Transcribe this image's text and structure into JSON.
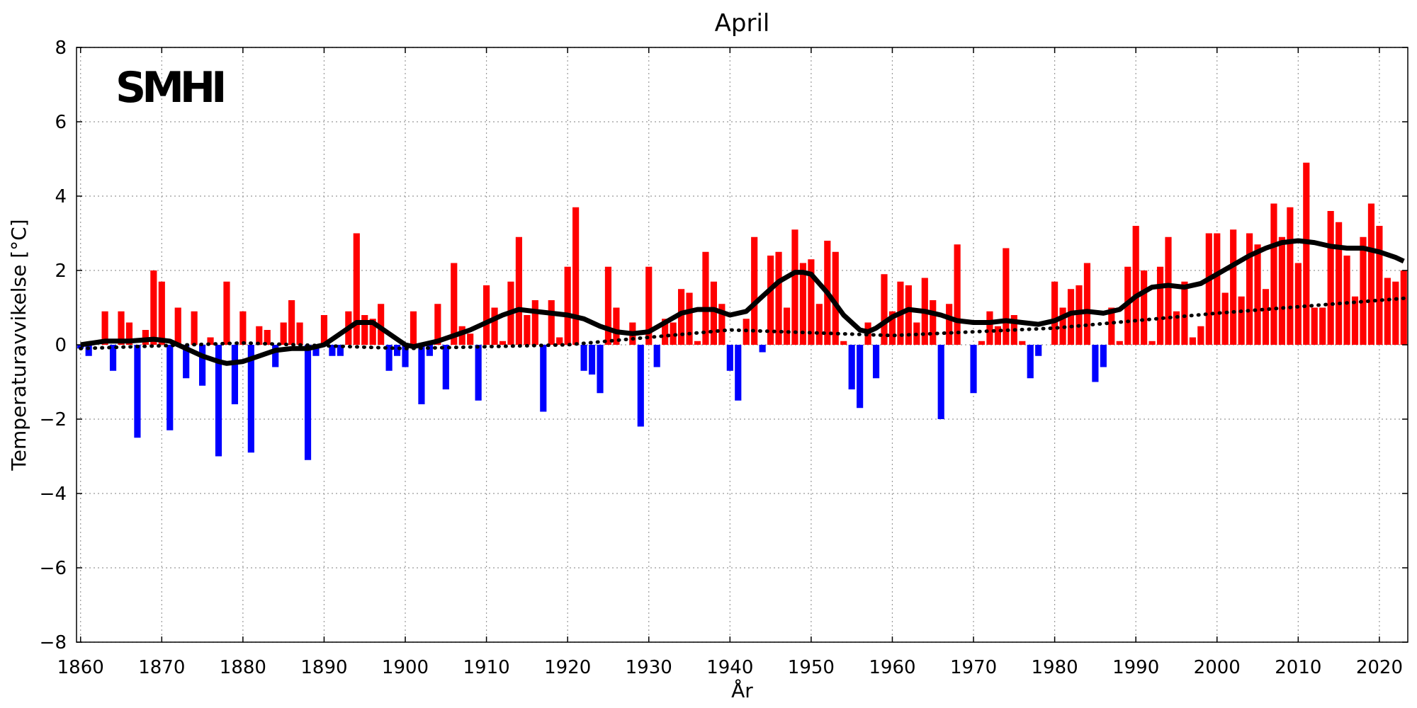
{
  "chart_data": {
    "type": "bar",
    "title": "April",
    "xlabel": "År",
    "ylabel": "Temperaturavvikelse [°C]",
    "logo": "SMHI",
    "xlim": [
      1859.5,
      2023.5
    ],
    "ylim": [
      -8,
      8
    ],
    "xticks": [
      1860,
      1870,
      1880,
      1890,
      1900,
      1910,
      1920,
      1930,
      1940,
      1950,
      1960,
      1970,
      1980,
      1990,
      2000,
      2010,
      2020
    ],
    "yticks": [
      -8,
      -6,
      -4,
      -2,
      0,
      2,
      4,
      6,
      8
    ],
    "ytick_labels": [
      "−8",
      "−6",
      "−4",
      "−2",
      "0",
      "2",
      "4",
      "6",
      "8"
    ],
    "grid": true,
    "colors": {
      "positive": "#ff0000",
      "negative": "#0000ff",
      "smooth": "#000000",
      "trend": "#000000"
    },
    "years_start": 1860,
    "values": [
      -0.1,
      -0.3,
      0.0,
      0.9,
      -0.7,
      0.9,
      0.6,
      -2.5,
      0.4,
      2.0,
      1.7,
      -2.3,
      1.0,
      -0.9,
      0.9,
      -1.1,
      0.2,
      -3.0,
      1.7,
      -1.6,
      0.9,
      -2.9,
      0.5,
      0.4,
      -0.6,
      0.6,
      1.2,
      0.6,
      -3.1,
      -0.3,
      0.8,
      -0.3,
      -0.3,
      0.9,
      3.0,
      0.8,
      0.7,
      1.1,
      -0.7,
      -0.3,
      -0.6,
      0.9,
      -1.6,
      -0.3,
      1.1,
      -1.2,
      2.2,
      0.5,
      0.3,
      -1.5,
      1.6,
      1.0,
      0.1,
      1.7,
      2.9,
      0.8,
      1.2,
      -1.8,
      1.2,
      0.2,
      2.1,
      3.7,
      -0.7,
      -0.8,
      -1.3,
      2.1,
      1.0,
      0.0,
      0.6,
      -2.2,
      2.1,
      -0.6,
      0.7,
      0.6,
      1.5,
      1.4,
      0.1,
      2.5,
      1.7,
      1.1,
      -0.7,
      -1.5,
      0.7,
      2.9,
      -0.2,
      2.4,
      2.5,
      1.0,
      3.1,
      2.2,
      2.3,
      1.1,
      2.8,
      2.5,
      0.1,
      -1.2,
      -1.7,
      0.6,
      -0.9,
      1.9,
      0.9,
      1.7,
      1.6,
      0.6,
      1.8,
      1.2,
      -2.0,
      1.1,
      2.7,
      0.0,
      -1.3,
      0.1,
      0.9,
      0.5,
      2.6,
      0.8,
      0.1,
      -0.9,
      -0.3,
      0.0,
      1.7,
      1.0,
      1.5,
      1.6,
      2.2,
      -1.0,
      -0.6,
      1.0,
      0.1,
      2.1,
      3.2,
      2.0,
      0.1,
      2.1,
      2.9,
      0.9,
      1.7,
      0.2,
      0.5,
      3.0,
      3.0,
      1.4,
      3.1,
      1.3,
      3.0,
      2.7,
      1.5,
      3.8,
      2.9,
      3.7,
      2.2,
      4.9,
      1.0,
      1.0,
      3.6,
      3.3,
      2.4,
      1.3,
      2.9,
      3.8,
      3.2,
      1.8,
      1.7,
      2.0
    ],
    "smooth": {
      "name": "",
      "x": [
        1860,
        1863,
        1866,
        1869,
        1871,
        1873,
        1875,
        1877,
        1878,
        1880,
        1882,
        1884,
        1886,
        1888,
        1890,
        1892,
        1894,
        1896,
        1898,
        1900,
        1901,
        1902,
        1904,
        1906,
        1908,
        1910,
        1912,
        1914,
        1916,
        1918,
        1920,
        1922,
        1924,
        1926,
        1928,
        1930,
        1932,
        1934,
        1936,
        1938,
        1940,
        1942,
        1944,
        1946,
        1948,
        1949,
        1950,
        1952,
        1954,
        1956,
        1957,
        1958,
        1960,
        1962,
        1964,
        1966,
        1968,
        1970,
        1972,
        1974,
        1976,
        1978,
        1980,
        1982,
        1984,
        1986,
        1988,
        1990,
        1992,
        1994,
        1996,
        1998,
        2000,
        2002,
        2004,
        2006,
        2008,
        2010,
        2012,
        2014,
        2016,
        2018,
        2020,
        2022,
        2023
      ],
      "y": [
        0.0,
        0.1,
        0.1,
        0.15,
        0.1,
        -0.1,
        -0.3,
        -0.45,
        -0.5,
        -0.45,
        -0.3,
        -0.15,
        -0.1,
        -0.1,
        0.0,
        0.3,
        0.6,
        0.6,
        0.3,
        0.0,
        -0.05,
        0.0,
        0.1,
        0.25,
        0.4,
        0.6,
        0.8,
        0.95,
        0.9,
        0.85,
        0.8,
        0.7,
        0.5,
        0.35,
        0.3,
        0.35,
        0.6,
        0.85,
        0.95,
        0.95,
        0.8,
        0.9,
        1.3,
        1.7,
        1.95,
        1.95,
        1.9,
        1.4,
        0.8,
        0.4,
        0.35,
        0.45,
        0.75,
        0.95,
        0.9,
        0.8,
        0.65,
        0.6,
        0.6,
        0.65,
        0.6,
        0.55,
        0.65,
        0.85,
        0.9,
        0.85,
        0.95,
        1.3,
        1.55,
        1.6,
        1.55,
        1.65,
        1.9,
        2.15,
        2.4,
        2.6,
        2.75,
        2.8,
        2.75,
        2.65,
        2.6,
        2.6,
        2.5,
        2.35,
        2.25
      ]
    },
    "trend": {
      "name": "",
      "x": [
        1860,
        1880,
        1900,
        1920,
        1940,
        1960,
        1980,
        2000,
        2023
      ],
      "y": [
        -0.1,
        0.05,
        -0.1,
        0.0,
        0.4,
        0.25,
        0.45,
        0.85,
        1.25
      ]
    }
  }
}
